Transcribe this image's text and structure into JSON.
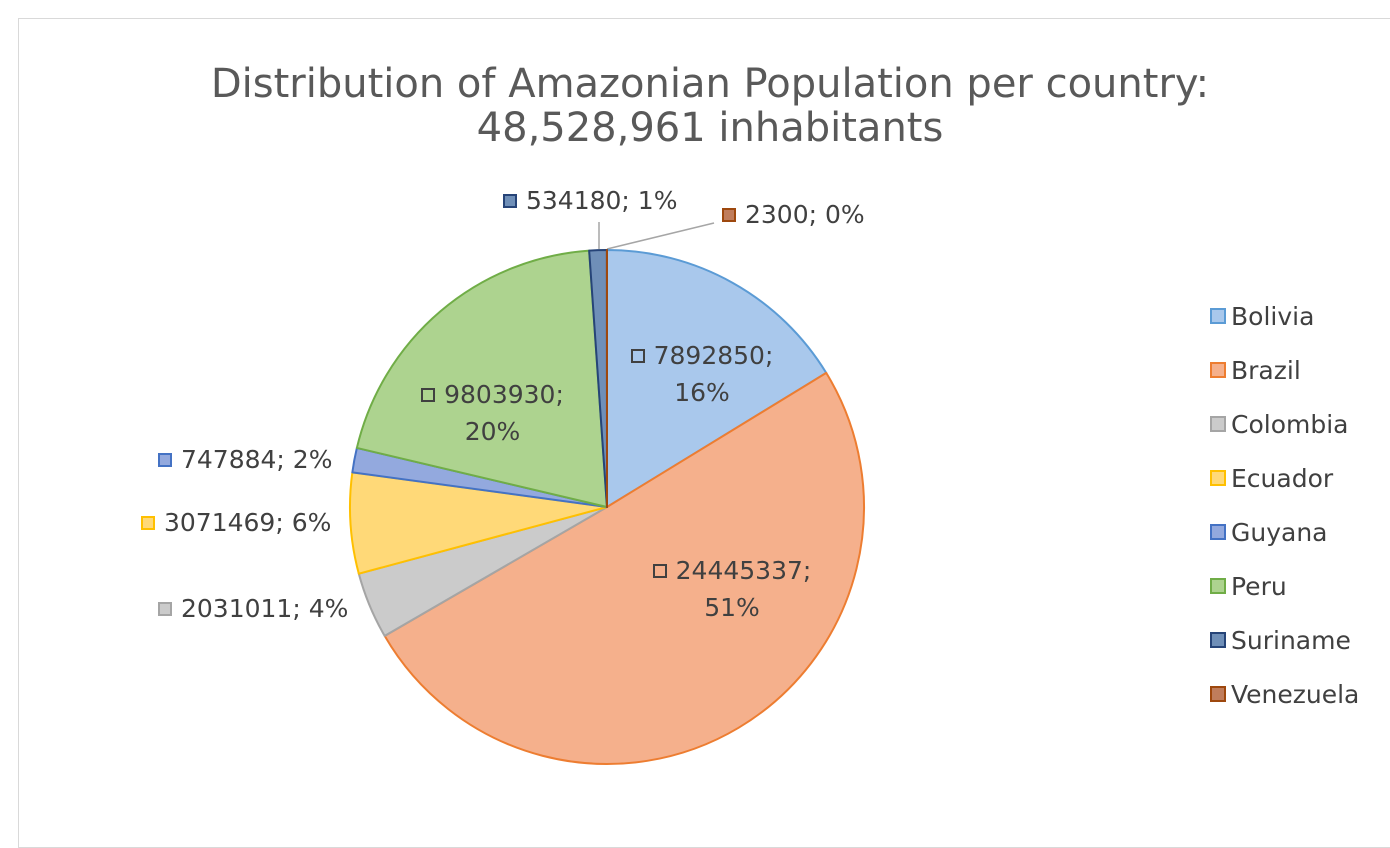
{
  "chart_data": {
    "type": "pie",
    "title": "Distribution of Amazonian Population per country: 48,528,961 inhabitants",
    "categories": [
      "Bolivia",
      "Brazil",
      "Colombia",
      "Ecuador",
      "Guyana",
      "Peru",
      "Suriname",
      "Venezuela"
    ],
    "values": [
      7892850,
      24445337,
      2031011,
      3071469,
      747884,
      9803930,
      534180,
      2300
    ],
    "value_labels": [
      "7892850; 16%",
      "24445337; 51%",
      "2031011; 4%",
      "3071469; 6%",
      "747884; 2%",
      "9803930; 20%",
      "534180; 1%",
      "2300; 0%"
    ],
    "colors": [
      "#a9c8ec",
      "#f5b08c",
      "#cbcbcb",
      "#ffd978",
      "#93a9de",
      "#add38f",
      "#6f8fb8",
      "#c07d5c"
    ],
    "edge_colors": [
      "#5b9bd5",
      "#ed7d31",
      "#a5a5a5",
      "#ffc000",
      "#4472c4",
      "#70ad47",
      "#264478",
      "#9e480e"
    ],
    "legend": "right"
  }
}
